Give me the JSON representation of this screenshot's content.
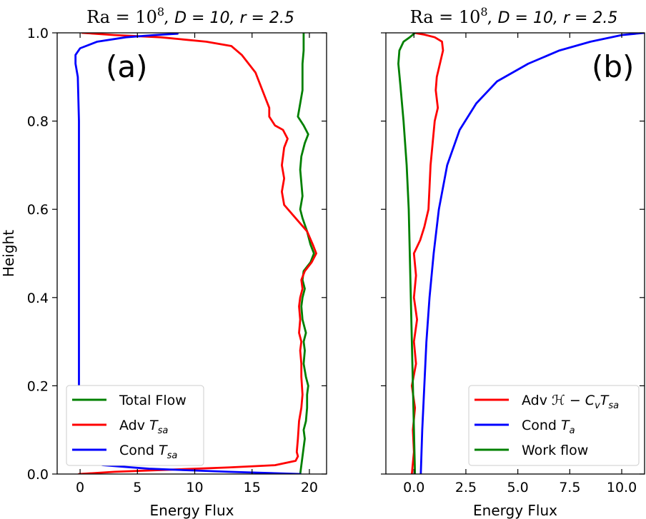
{
  "chart_data": [
    {
      "type": "line",
      "title": {
        "prefix": "Ra = 10",
        "exp": "8",
        "d_part": ", D = 10",
        "r_part": ", r = 2.5"
      },
      "panel_label": "(a)",
      "xlabel": "Energy Flux",
      "ylabel": "Height",
      "xlim": [
        -2,
        21.5
      ],
      "ylim": [
        0,
        1
      ],
      "xticks": [
        0,
        5,
        10,
        15,
        20
      ],
      "xtick_labels": [
        "0",
        "5",
        "10",
        "15",
        "20"
      ],
      "yticks": [
        0,
        0.2,
        0.4,
        0.6,
        0.8,
        1.0
      ],
      "ytick_labels": [
        "0.0",
        "0.2",
        "0.4",
        "0.6",
        "0.8",
        "1.0"
      ],
      "legend_position": "lower-left",
      "series": [
        {
          "name": "Total Flow",
          "color": "#008000",
          "points": [
            [
              19.2,
              0
            ],
            [
              19.3,
              0.02
            ],
            [
              19.4,
              0.04
            ],
            [
              19.5,
              0.06
            ],
            [
              19.6,
              0.08
            ],
            [
              19.5,
              0.1
            ],
            [
              19.7,
              0.12
            ],
            [
              19.8,
              0.15
            ],
            [
              19.8,
              0.18
            ],
            [
              19.9,
              0.2
            ],
            [
              19.7,
              0.22
            ],
            [
              19.5,
              0.25
            ],
            [
              19.6,
              0.28
            ],
            [
              19.5,
              0.3
            ],
            [
              19.7,
              0.32
            ],
            [
              19.4,
              0.35
            ],
            [
              19.3,
              0.38
            ],
            [
              19.4,
              0.4
            ],
            [
              19.6,
              0.42
            ],
            [
              19.4,
              0.44
            ],
            [
              19.5,
              0.46
            ],
            [
              20.1,
              0.48
            ],
            [
              20.4,
              0.5
            ],
            [
              20.1,
              0.52
            ],
            [
              19.8,
              0.55
            ],
            [
              19.4,
              0.58
            ],
            [
              19.2,
              0.6
            ],
            [
              19.4,
              0.63
            ],
            [
              19.3,
              0.66
            ],
            [
              19.2,
              0.69
            ],
            [
              19.3,
              0.72
            ],
            [
              19.6,
              0.75
            ],
            [
              19.9,
              0.77
            ],
            [
              19.5,
              0.79
            ],
            [
              19.0,
              0.81
            ],
            [
              19.2,
              0.84
            ],
            [
              19.4,
              0.87
            ],
            [
              19.4,
              0.9
            ],
            [
              19.4,
              0.93
            ],
            [
              19.5,
              0.96
            ],
            [
              19.5,
              0.99
            ],
            [
              19.5,
              1.0
            ]
          ]
        },
        {
          "name": "Adv T_sa",
          "color": "#ff0000",
          "points": [
            [
              -0.1,
              0
            ],
            [
              3.0,
              0.005
            ],
            [
              8.0,
              0.01
            ],
            [
              13.0,
              0.015
            ],
            [
              17.0,
              0.02
            ],
            [
              18.8,
              0.03
            ],
            [
              19.0,
              0.04
            ],
            [
              18.9,
              0.05
            ],
            [
              19.0,
              0.08
            ],
            [
              19.1,
              0.12
            ],
            [
              19.3,
              0.15
            ],
            [
              19.4,
              0.18
            ],
            [
              19.3,
              0.22
            ],
            [
              19.3,
              0.25
            ],
            [
              19.2,
              0.28
            ],
            [
              19.3,
              0.3
            ],
            [
              19.1,
              0.32
            ],
            [
              19.2,
              0.35
            ],
            [
              19.1,
              0.38
            ],
            [
              19.2,
              0.4
            ],
            [
              19.4,
              0.42
            ],
            [
              19.3,
              0.44
            ],
            [
              19.6,
              0.46
            ],
            [
              20.2,
              0.48
            ],
            [
              20.6,
              0.5
            ],
            [
              20.3,
              0.52
            ],
            [
              19.8,
              0.55
            ],
            [
              18.8,
              0.58
            ],
            [
              17.8,
              0.61
            ],
            [
              17.6,
              0.64
            ],
            [
              17.8,
              0.67
            ],
            [
              17.6,
              0.7
            ],
            [
              17.7,
              0.72
            ],
            [
              17.8,
              0.74
            ],
            [
              18.1,
              0.76
            ],
            [
              17.7,
              0.78
            ],
            [
              17.0,
              0.79
            ],
            [
              16.5,
              0.81
            ],
            [
              16.5,
              0.83
            ],
            [
              16.2,
              0.85
            ],
            [
              15.9,
              0.87
            ],
            [
              15.6,
              0.89
            ],
            [
              15.3,
              0.91
            ],
            [
              14.7,
              0.93
            ],
            [
              14.1,
              0.95
            ],
            [
              13.2,
              0.97
            ],
            [
              11.0,
              0.98
            ],
            [
              7.0,
              0.99
            ],
            [
              3.0,
              0.995
            ],
            [
              0.2,
              1.0
            ]
          ]
        },
        {
          "name": "Cond T_sa",
          "color": "#0000ff",
          "points": [
            [
              19.2,
              0.0
            ],
            [
              13.0,
              0.005
            ],
            [
              6.0,
              0.012
            ],
            [
              2.0,
              0.02
            ],
            [
              0.3,
              0.03
            ],
            [
              0.0,
              0.05
            ],
            [
              -0.05,
              0.1
            ],
            [
              -0.1,
              0.2
            ],
            [
              -0.1,
              0.4
            ],
            [
              -0.1,
              0.6
            ],
            [
              -0.1,
              0.8
            ],
            [
              -0.2,
              0.9
            ],
            [
              -0.4,
              0.93
            ],
            [
              -0.4,
              0.95
            ],
            [
              0.0,
              0.965
            ],
            [
              1.5,
              0.98
            ],
            [
              4.0,
              0.99
            ],
            [
              6.5,
              0.995
            ],
            [
              8.5,
              0.998
            ]
          ]
        }
      ]
    },
    {
      "type": "line",
      "title": {
        "prefix": "Ra = 10",
        "exp": "8",
        "d_part": ", D = 10",
        "r_part": ", r = 2.5"
      },
      "panel_label": "(b)",
      "xlabel": "Energy Flux",
      "ylabel": "",
      "xlim": [
        -1.35,
        11.1
      ],
      "ylim": [
        0,
        1
      ],
      "xticks": [
        0,
        2.5,
        5,
        7.5,
        10
      ],
      "xtick_labels": [
        "0.0",
        "2.5",
        "5.0",
        "7.5",
        "10.0"
      ],
      "legend_position": "lower-right",
      "series": [
        {
          "name": "Adv H - C_v T_sa",
          "color": "#ff0000",
          "points": [
            [
              -0.1,
              0.0
            ],
            [
              0.0,
              0.05
            ],
            [
              -0.05,
              0.1
            ],
            [
              0.05,
              0.15
            ],
            [
              -0.1,
              0.2
            ],
            [
              0.1,
              0.25
            ],
            [
              0.0,
              0.3
            ],
            [
              0.15,
              0.35
            ],
            [
              0.0,
              0.4
            ],
            [
              0.1,
              0.45
            ],
            [
              0.0,
              0.5
            ],
            [
              0.3,
              0.53
            ],
            [
              0.5,
              0.56
            ],
            [
              0.7,
              0.6
            ],
            [
              0.75,
              0.65
            ],
            [
              0.8,
              0.7
            ],
            [
              0.9,
              0.75
            ],
            [
              1.0,
              0.8
            ],
            [
              1.15,
              0.83
            ],
            [
              1.05,
              0.87
            ],
            [
              1.1,
              0.9
            ],
            [
              1.25,
              0.93
            ],
            [
              1.4,
              0.96
            ],
            [
              1.35,
              0.98
            ],
            [
              1.0,
              0.99
            ],
            [
              0.5,
              0.996
            ],
            [
              0.0,
              1.0
            ]
          ]
        },
        {
          "name": "Cond T_a",
          "color": "#0000ff",
          "points": [
            [
              0.33,
              0.0
            ],
            [
              0.4,
              0.1
            ],
            [
              0.5,
              0.2
            ],
            [
              0.6,
              0.3
            ],
            [
              0.75,
              0.4
            ],
            [
              0.95,
              0.5
            ],
            [
              1.2,
              0.6
            ],
            [
              1.6,
              0.7
            ],
            [
              2.2,
              0.78
            ],
            [
              3.0,
              0.84
            ],
            [
              4.0,
              0.89
            ],
            [
              5.5,
              0.93
            ],
            [
              7.0,
              0.96
            ],
            [
              8.5,
              0.98
            ],
            [
              10.0,
              0.995
            ],
            [
              11.1,
              1.0
            ]
          ]
        },
        {
          "name": "Work flow",
          "color": "#008000",
          "points": [
            [
              0.05,
              0.0
            ],
            [
              0.0,
              0.1
            ],
            [
              -0.05,
              0.2
            ],
            [
              -0.1,
              0.3
            ],
            [
              -0.15,
              0.4
            ],
            [
              -0.2,
              0.5
            ],
            [
              -0.25,
              0.6
            ],
            [
              -0.35,
              0.7
            ],
            [
              -0.5,
              0.8
            ],
            [
              -0.65,
              0.88
            ],
            [
              -0.75,
              0.93
            ],
            [
              -0.7,
              0.96
            ],
            [
              -0.5,
              0.98
            ],
            [
              -0.2,
              0.99
            ],
            [
              0.05,
              1.0
            ]
          ]
        }
      ]
    }
  ],
  "legends": [
    [
      {
        "label_parts": [
          {
            "t": "Total Flow"
          }
        ],
        "color": "#008000"
      },
      {
        "label_parts": [
          {
            "t": "Adv "
          },
          {
            "t": "T",
            "it": true
          },
          {
            "t": "sa",
            "it": true,
            "sub": true
          }
        ],
        "color": "#ff0000"
      },
      {
        "label_parts": [
          {
            "t": "Cond "
          },
          {
            "t": "T",
            "it": true
          },
          {
            "t": "sa",
            "it": true,
            "sub": true
          }
        ],
        "color": "#0000ff"
      }
    ],
    [
      {
        "label_parts": [
          {
            "t": "Adv "
          },
          {
            "t": "ℋ",
            "it": true
          },
          {
            "t": " − "
          },
          {
            "t": "C",
            "it": true
          },
          {
            "t": "v",
            "it": true,
            "sub": true
          },
          {
            "t": "T",
            "it": true
          },
          {
            "t": "sa",
            "it": true,
            "sub": true
          }
        ],
        "color": "#ff0000"
      },
      {
        "label_parts": [
          {
            "t": "Cond "
          },
          {
            "t": "T",
            "it": true
          },
          {
            "t": "a",
            "it": true,
            "sub": true
          }
        ],
        "color": "#0000ff"
      },
      {
        "label_parts": [
          {
            "t": "Work flow"
          }
        ],
        "color": "#008000"
      }
    ]
  ]
}
